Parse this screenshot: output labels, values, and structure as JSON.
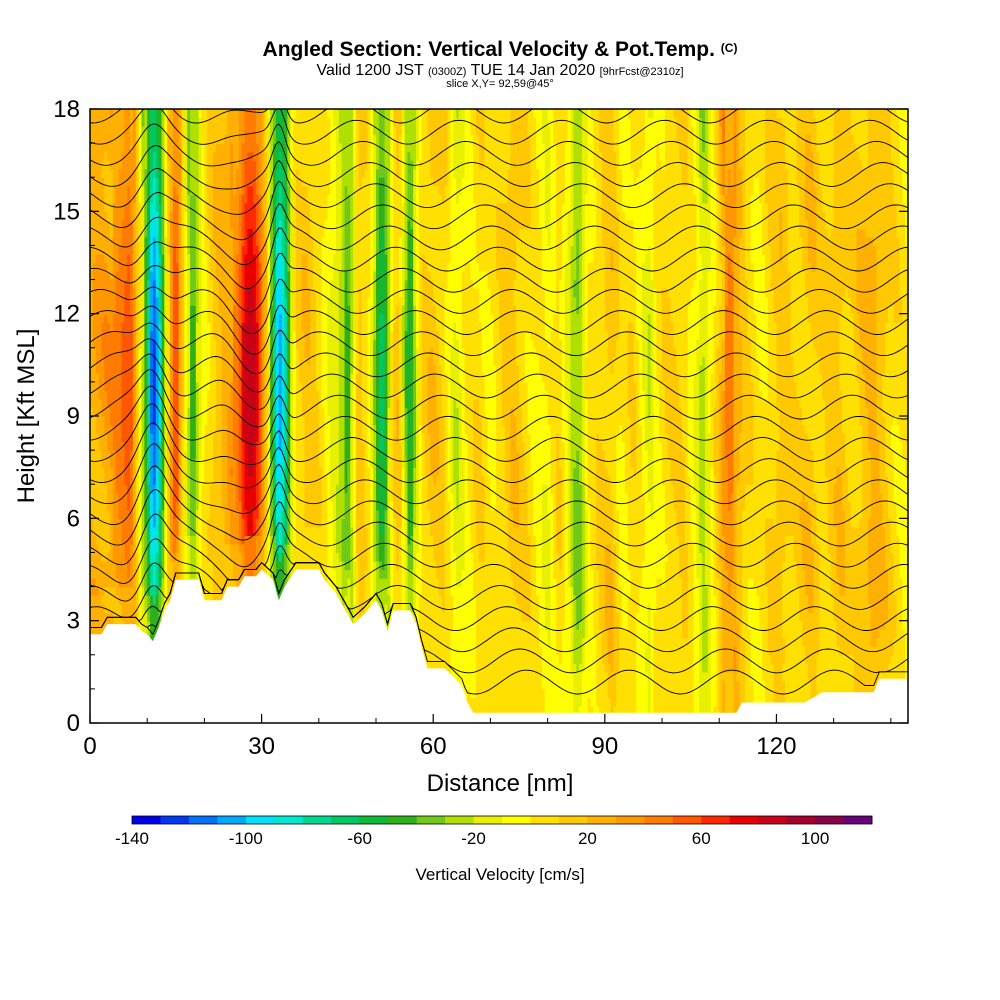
{
  "header": {
    "title_main": "Angled Section: Vertical Velocity & Pot.Temp.",
    "title_units": "(C)",
    "valid_prefix": "Valid 1200 JST",
    "valid_utc": "(0300Z)",
    "valid_date": "TUE 14 Jan 2020",
    "forecast": "[9hrFcst@2310z]",
    "slice": "slice X,Y= 92,59@45°"
  },
  "chart_data": {
    "type": "heatmap",
    "xlabel": "Distance [nm]",
    "ylabel": "Height [Kft MSL]",
    "xlim": [
      0,
      143
    ],
    "ylim": [
      0,
      18
    ],
    "x_ticks": [
      0,
      30,
      60,
      90,
      120
    ],
    "y_ticks": [
      0,
      3,
      6,
      9,
      12,
      15,
      18
    ],
    "colorbar": {
      "label": "Vertical Velocity [cm/s]",
      "min": -140,
      "max": 120,
      "step": 10,
      "tick_labels": [
        -140,
        -100,
        -60,
        -20,
        20,
        60,
        100
      ],
      "colors": [
        "#0000e8",
        "#0038f0",
        "#0070f8",
        "#00a8f8",
        "#00e0f8",
        "#00e8d0",
        "#00d890",
        "#00c860",
        "#10b838",
        "#30b018",
        "#70c818",
        "#b0e000",
        "#e8f000",
        "#ffff00",
        "#ffe000",
        "#ffc800",
        "#ffb000",
        "#ff9800",
        "#ff7c00",
        "#ff5800",
        "#ff2800",
        "#e80000",
        "#c80018",
        "#a8002c",
        "#880048",
        "#680078"
      ]
    },
    "terrain": [
      [
        0,
        2.6
      ],
      [
        2,
        2.6
      ],
      [
        3,
        2.9
      ],
      [
        8,
        2.9
      ],
      [
        9,
        2.7
      ],
      [
        10,
        2.6
      ],
      [
        11,
        2.4
      ],
      [
        12,
        2.8
      ],
      [
        13,
        3.3
      ],
      [
        14,
        3.6
      ],
      [
        15,
        4.2
      ],
      [
        19,
        4.2
      ],
      [
        20,
        3.6
      ],
      [
        23,
        3.6
      ],
      [
        24,
        4.0
      ],
      [
        26,
        4.0
      ],
      [
        27,
        4.3
      ],
      [
        29,
        4.3
      ],
      [
        30,
        4.5
      ],
      [
        32,
        4.2
      ],
      [
        33,
        3.6
      ],
      [
        34,
        4.0
      ],
      [
        36,
        4.5
      ],
      [
        40,
        4.5
      ],
      [
        41,
        4.2
      ],
      [
        43,
        3.8
      ],
      [
        45,
        3.2
      ],
      [
        46,
        2.9
      ],
      [
        48,
        3.2
      ],
      [
        50,
        3.6
      ],
      [
        51,
        3.3
      ],
      [
        52,
        2.7
      ],
      [
        53,
        3.3
      ],
      [
        56,
        3.3
      ],
      [
        57,
        2.9
      ],
      [
        58,
        2.2
      ],
      [
        59,
        1.6
      ],
      [
        62,
        1.6
      ],
      [
        65,
        1.1
      ],
      [
        66,
        0.6
      ],
      [
        67,
        0.3
      ],
      [
        113,
        0.3
      ],
      [
        114,
        0.6
      ],
      [
        125,
        0.6
      ],
      [
        128,
        0.9
      ],
      [
        137,
        0.9
      ],
      [
        138,
        1.3
      ],
      [
        143,
        1.3
      ]
    ],
    "columns": [
      [
        0,
        30
      ],
      [
        4,
        40
      ],
      [
        7,
        60
      ],
      [
        8,
        30
      ],
      [
        10,
        -60
      ],
      [
        11,
        -130
      ],
      [
        12,
        -100
      ],
      [
        13,
        -30
      ],
      [
        14,
        30
      ],
      [
        15,
        70
      ],
      [
        16,
        20
      ],
      [
        17,
        -20
      ],
      [
        18,
        -50
      ],
      [
        19,
        -20
      ],
      [
        20,
        0
      ],
      [
        22,
        20
      ],
      [
        24,
        30
      ],
      [
        26,
        50
      ],
      [
        27,
        80
      ],
      [
        28,
        90
      ],
      [
        29,
        80
      ],
      [
        30,
        50
      ],
      [
        31,
        10
      ],
      [
        32,
        -60
      ],
      [
        33,
        -110
      ],
      [
        34,
        -90
      ],
      [
        35,
        -30
      ],
      [
        36,
        10
      ],
      [
        38,
        20
      ],
      [
        40,
        10
      ],
      [
        42,
        -10
      ],
      [
        44,
        -30
      ],
      [
        45,
        -50
      ],
      [
        46,
        -20
      ],
      [
        47,
        20
      ],
      [
        49,
        0
      ],
      [
        50,
        -40
      ],
      [
        51,
        -70
      ],
      [
        52,
        -40
      ],
      [
        53,
        10
      ],
      [
        54,
        20
      ],
      [
        55,
        -30
      ],
      [
        56,
        -60
      ],
      [
        57,
        -20
      ],
      [
        58,
        10
      ],
      [
        60,
        20
      ],
      [
        62,
        10
      ],
      [
        64,
        -20
      ],
      [
        65,
        -10
      ],
      [
        66,
        0
      ],
      [
        68,
        10
      ],
      [
        70,
        0
      ],
      [
        72,
        10
      ],
      [
        74,
        20
      ],
      [
        76,
        10
      ],
      [
        78,
        0
      ],
      [
        80,
        -10
      ],
      [
        82,
        10
      ],
      [
        84,
        -20
      ],
      [
        85,
        -40
      ],
      [
        86,
        -30
      ],
      [
        87,
        0
      ],
      [
        89,
        10
      ],
      [
        91,
        20
      ],
      [
        93,
        0
      ],
      [
        95,
        10
      ],
      [
        97,
        -10
      ],
      [
        98,
        -20
      ],
      [
        99,
        0
      ],
      [
        101,
        10
      ],
      [
        104,
        10
      ],
      [
        106,
        -10
      ],
      [
        107,
        -30
      ],
      [
        108,
        -20
      ],
      [
        109,
        0
      ],
      [
        110,
        20
      ],
      [
        111,
        40
      ],
      [
        112,
        50
      ],
      [
        113,
        30
      ],
      [
        115,
        10
      ],
      [
        117,
        0
      ],
      [
        119,
        10
      ],
      [
        121,
        20
      ],
      [
        123,
        10
      ],
      [
        126,
        20
      ],
      [
        128,
        10
      ],
      [
        131,
        20
      ],
      [
        133,
        10
      ],
      [
        135,
        20
      ],
      [
        137,
        30
      ],
      [
        140,
        10
      ],
      [
        143,
        0
      ]
    ],
    "contours": {
      "levels": [
        -18,
        -16,
        -14,
        -12,
        -10,
        -8,
        -6,
        -4,
        -2,
        0,
        2,
        4,
        6,
        8,
        10,
        12,
        14,
        16,
        18,
        20,
        22,
        24,
        26,
        28,
        30,
        32,
        34,
        36
      ]
    }
  }
}
